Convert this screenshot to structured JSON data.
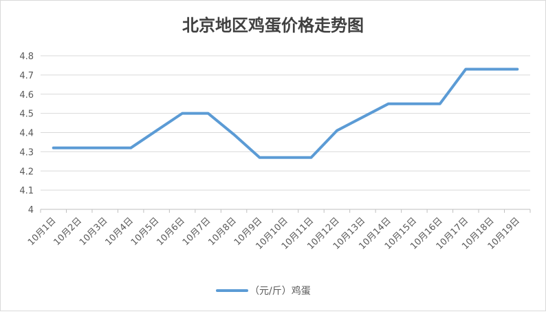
{
  "chart_data": {
    "type": "line",
    "title": "北京地区鸡蛋价格走势图",
    "categories": [
      "10月1日",
      "10月2日",
      "10月3日",
      "10月4日",
      "10月5日",
      "10月6日",
      "10月7日",
      "10月8日",
      "10月9日",
      "10月10日",
      "10月11日",
      "10月12日",
      "10月13日",
      "10月14日",
      "10月15日",
      "10月16日",
      "10月17日",
      "10月18日",
      "10月19日"
    ],
    "series": [
      {
        "name": "（元/斤）鸡蛋",
        "values": [
          4.32,
          4.32,
          4.32,
          4.32,
          4.41,
          4.5,
          4.5,
          4.39,
          4.27,
          4.27,
          4.27,
          4.41,
          4.48,
          4.55,
          4.55,
          4.55,
          4.73,
          4.73,
          4.73
        ],
        "color": "#5b9bd5"
      }
    ],
    "ylim": [
      4,
      4.8
    ],
    "yticks": [
      "4",
      "4.1",
      "4.2",
      "4.3",
      "4.4",
      "4.5",
      "4.6",
      "4.7",
      "4.8"
    ],
    "grid": true,
    "legend": "bottom"
  }
}
